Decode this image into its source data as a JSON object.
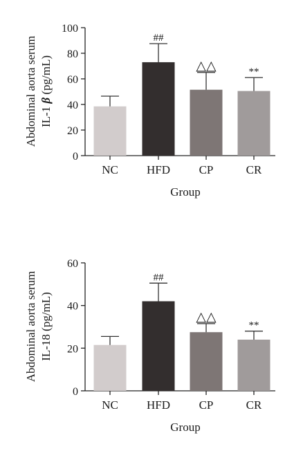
{
  "chart_data": [
    {
      "type": "bar",
      "categories": [
        "NC",
        "HFD",
        "CP",
        "CR"
      ],
      "values": [
        38.5,
        73,
        51.5,
        50.5
      ],
      "errors": [
        8,
        14.5,
        13.5,
        10.5
      ],
      "annotations": [
        "",
        "##",
        "△△",
        "**"
      ],
      "ylabel_line1": "Abdominal aorta serum",
      "ylabel_line2_prefix": "IL-1 ",
      "ylabel_line2_beta": "β",
      "ylabel_line2_suffix": " (pg/mL)",
      "xlabel": "Group",
      "ylim": [
        0,
        100
      ],
      "yticks": [
        0,
        20,
        40,
        60,
        80,
        100
      ],
      "colors": [
        "#d2cccc",
        "#332e2e",
        "#7e7675",
        "#a09b9b"
      ]
    },
    {
      "type": "bar",
      "categories": [
        "NC",
        "HFD",
        "CP",
        "CR"
      ],
      "values": [
        21.5,
        42,
        27.5,
        24
      ],
      "errors": [
        4,
        8.5,
        4,
        4
      ],
      "annotations": [
        "",
        "##",
        "△△",
        "**"
      ],
      "ylabel_line1": "Abdominal aorta serum",
      "ylabel_line2": "IL-18 (pg/mL)",
      "xlabel": "Group",
      "ylim": [
        0,
        60
      ],
      "yticks": [
        0,
        20,
        40,
        60
      ],
      "colors": [
        "#d2cccc",
        "#332e2e",
        "#7e7675",
        "#a09b9b"
      ]
    }
  ]
}
